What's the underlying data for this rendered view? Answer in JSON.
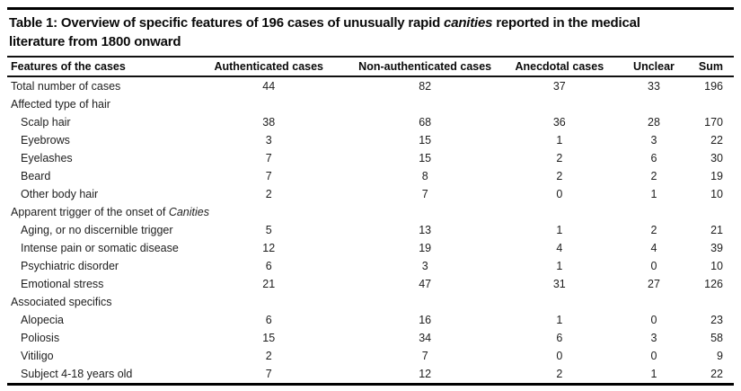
{
  "colors": {
    "background": "#ffffff",
    "text": "#1e1e1e",
    "rule": "#000000"
  },
  "table": {
    "title": {
      "pre": "Table 1: Overview of specific features of 196 cases of unusually rapid ",
      "italic": "canities",
      "post": " reported in the medical",
      "line2": "literature from 1800 onward"
    },
    "columns": [
      "Features of the cases",
      "Authenticated cases",
      "Non-authenticated cases",
      "Anecdotal cases",
      "Unclear",
      "Sum"
    ],
    "rows": [
      {
        "label": "Total number of cases",
        "values": [
          44,
          82,
          37,
          33,
          196
        ]
      },
      {
        "label": "Affected type of hair",
        "section": true
      },
      {
        "label": "Scalp hair",
        "indent": true,
        "values": [
          38,
          68,
          36,
          28,
          170
        ]
      },
      {
        "label": "Eyebrows",
        "indent": true,
        "values": [
          3,
          15,
          1,
          3,
          22
        ]
      },
      {
        "label": "Eyelashes",
        "indent": true,
        "values": [
          7,
          15,
          2,
          6,
          30
        ]
      },
      {
        "label": "Beard",
        "indent": true,
        "values": [
          7,
          8,
          2,
          2,
          19
        ]
      },
      {
        "label": "Other body hair",
        "indent": true,
        "values": [
          2,
          7,
          0,
          1,
          10
        ]
      },
      {
        "label": "Apparent trigger of the onset of ",
        "label_italic": "Canities",
        "section": true
      },
      {
        "label": "Aging, or no discernible trigger",
        "indent": true,
        "values": [
          5,
          13,
          1,
          2,
          21
        ]
      },
      {
        "label": "Intense pain or somatic disease",
        "indent": true,
        "values": [
          12,
          19,
          4,
          4,
          39
        ]
      },
      {
        "label": "Psychiatric disorder",
        "indent": true,
        "values": [
          6,
          3,
          1,
          0,
          10
        ]
      },
      {
        "label": "Emotional stress",
        "indent": true,
        "values": [
          21,
          47,
          31,
          27,
          126
        ]
      },
      {
        "label": "Associated specifics",
        "section": true
      },
      {
        "label": "Alopecia",
        "indent": true,
        "values": [
          6,
          16,
          1,
          0,
          23
        ]
      },
      {
        "label": "Poliosis",
        "indent": true,
        "values": [
          15,
          34,
          6,
          3,
          58
        ]
      },
      {
        "label": "Vitiligo",
        "indent": true,
        "values": [
          2,
          7,
          0,
          0,
          9
        ]
      },
      {
        "label": "Subject 4-18 years old",
        "indent": true,
        "values": [
          7,
          12,
          2,
          1,
          22
        ]
      }
    ]
  }
}
